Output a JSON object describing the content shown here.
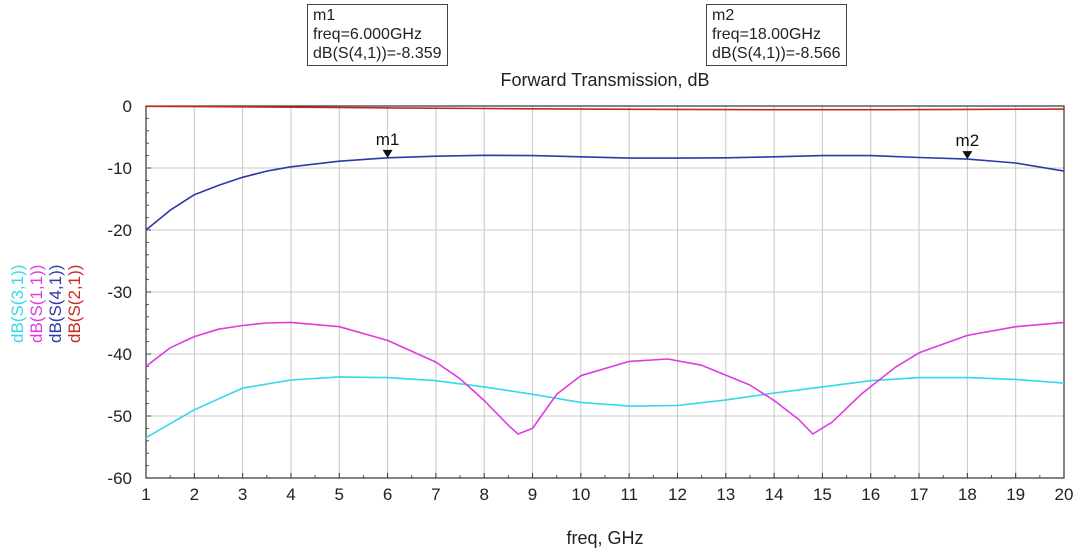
{
  "chart_data": {
    "type": "line",
    "title": "Forward Transmission, dB",
    "xlabel": "freq, GHz",
    "x_ticks": [
      "1",
      "2",
      "3",
      "4",
      "5",
      "6",
      "7",
      "8",
      "9",
      "10",
      "11",
      "12",
      "13",
      "14",
      "15",
      "16",
      "17",
      "18",
      "19",
      "20"
    ],
    "y_ticks": [
      "0",
      "-10",
      "-20",
      "-30",
      "-40",
      "-50",
      "-60"
    ],
    "xlim": [
      1,
      20
    ],
    "ylim": [
      -60,
      0
    ],
    "grid": true,
    "legend_placement": "left, rotated vertical",
    "series": [
      {
        "name": "dB(S(3,1))",
        "color": "#35d8e8",
        "x": [
          1,
          2,
          3,
          4,
          5,
          6,
          7,
          8,
          9,
          10,
          11,
          12,
          13,
          14,
          15,
          16,
          17,
          18,
          19,
          20
        ],
        "y": [
          -53.5,
          -49.0,
          -45.5,
          -44.2,
          -43.7,
          -43.8,
          -44.3,
          -45.3,
          -46.5,
          -47.8,
          -48.4,
          -48.3,
          -47.4,
          -46.3,
          -45.3,
          -44.3,
          -43.8,
          -43.8,
          -44.1,
          -44.7
        ]
      },
      {
        "name": "dB(S(1,1))",
        "color": "#e03ae0",
        "x": [
          1,
          1.5,
          2,
          2.5,
          3,
          3.5,
          4,
          5,
          6,
          7,
          7.5,
          8,
          8.5,
          8.7,
          9,
          9.5,
          10,
          11,
          11.8,
          12.5,
          13.5,
          14,
          14.5,
          14.8,
          15.2,
          15.8,
          16.5,
          17,
          18,
          19,
          20
        ],
        "y": [
          -42.0,
          -39.0,
          -37.2,
          -36.0,
          -35.4,
          -35.0,
          -34.9,
          -35.6,
          -37.8,
          -41.3,
          -44.0,
          -47.5,
          -51.5,
          -52.9,
          -52.0,
          -46.5,
          -43.5,
          -41.2,
          -40.8,
          -41.8,
          -45.0,
          -47.5,
          -50.5,
          -52.9,
          -51.0,
          -46.5,
          -42.2,
          -39.8,
          -37.0,
          -35.6,
          -34.9
        ]
      },
      {
        "name": "dB(S(4,1))",
        "color": "#2d3aa8",
        "x": [
          1,
          1.5,
          2,
          2.5,
          3,
          3.5,
          4,
          5,
          6,
          7,
          8,
          9,
          10,
          11,
          12,
          13,
          14,
          15,
          16,
          17,
          18,
          19,
          20
        ],
        "y": [
          -20.0,
          -16.8,
          -14.3,
          -12.8,
          -11.5,
          -10.5,
          -9.8,
          -8.9,
          -8.36,
          -8.1,
          -7.95,
          -8.0,
          -8.2,
          -8.4,
          -8.4,
          -8.35,
          -8.2,
          -8.0,
          -8.0,
          -8.3,
          -8.57,
          -9.2,
          -10.5
        ]
      },
      {
        "name": "dB(S(2,1))",
        "color": "#c8281e",
        "x": [
          1,
          2,
          4,
          6,
          8,
          10,
          12,
          14,
          16,
          18,
          20
        ],
        "y": [
          -0.05,
          -0.1,
          -0.2,
          -0.3,
          -0.4,
          -0.5,
          -0.55,
          -0.6,
          -0.6,
          -0.55,
          -0.5
        ]
      }
    ],
    "markers": [
      {
        "name": "m1",
        "series": "dB(S(4,1))",
        "x": 6.0,
        "y": -8.359
      },
      {
        "name": "m2",
        "series": "dB(S(4,1))",
        "x": 18.0,
        "y": -8.566
      }
    ]
  },
  "marker_boxes": [
    {
      "name": "m1",
      "freq": "freq=6.000GHz",
      "value": "dB(S(4,1))=-8.359"
    },
    {
      "name": "m2",
      "freq": "freq=18.00GHz",
      "value": "dB(S(4,1))=-8.566"
    }
  ]
}
